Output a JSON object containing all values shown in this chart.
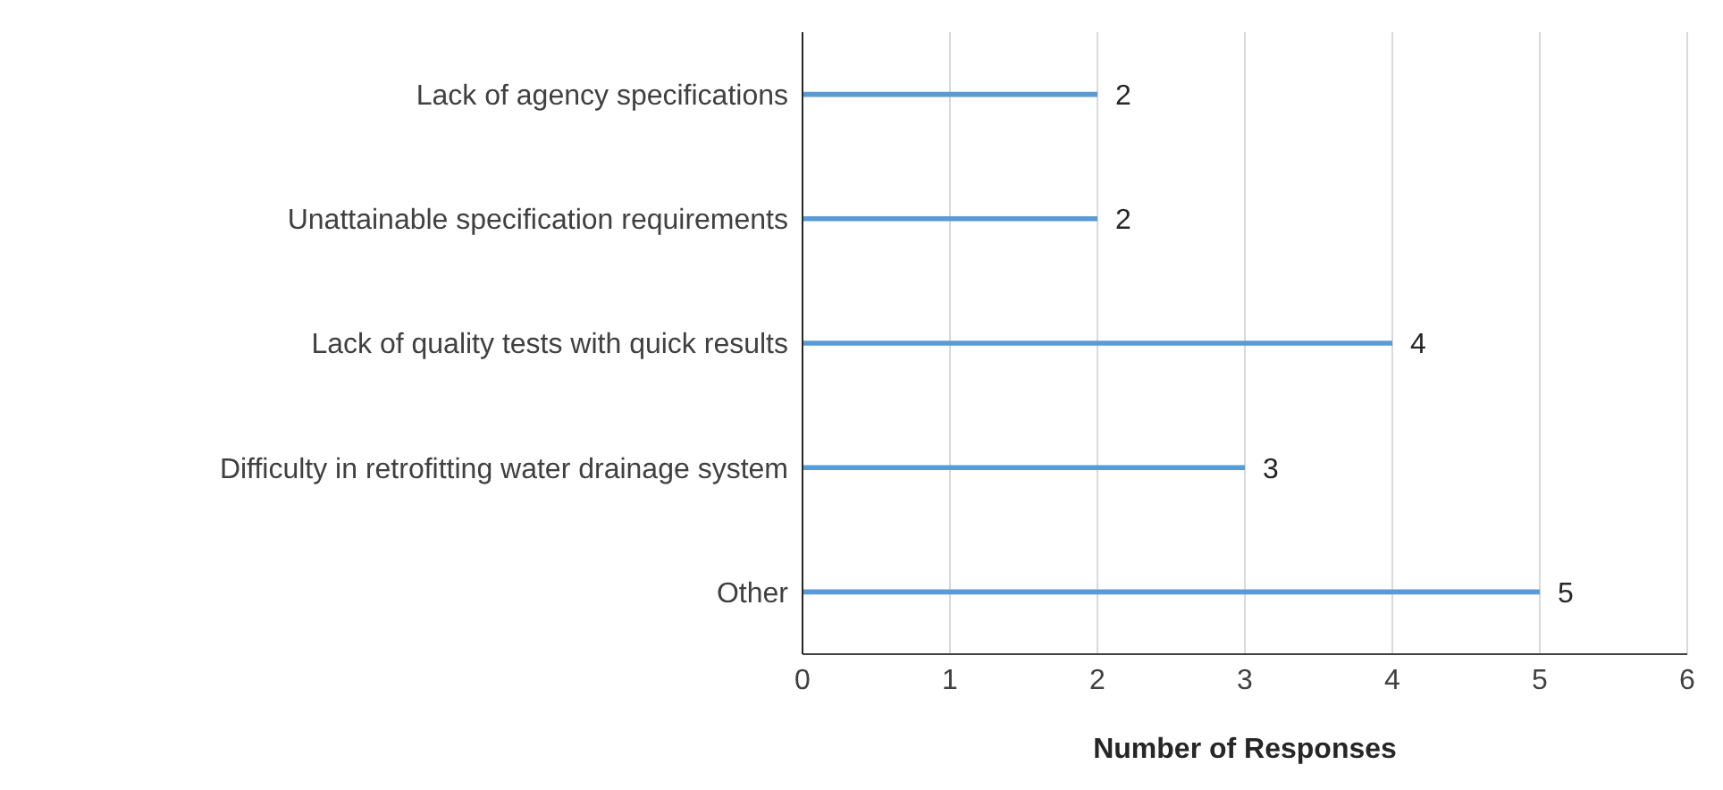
{
  "chart_data": {
    "type": "bar",
    "orientation": "horizontal",
    "categories": [
      "Lack of agency specifications",
      "Unattainable specification requirements",
      "Lack of quality tests with quick results",
      "Difficulty in retrofitting water drainage system",
      "Other"
    ],
    "values": [
      2,
      2,
      4,
      3,
      5
    ],
    "color": "#5b9bd5",
    "xlabel": "Number of Responses",
    "xlim": [
      0,
      6
    ],
    "xticks": [
      0,
      1,
      2,
      3,
      4,
      5,
      6
    ],
    "grid": "x",
    "data_labels": true
  }
}
